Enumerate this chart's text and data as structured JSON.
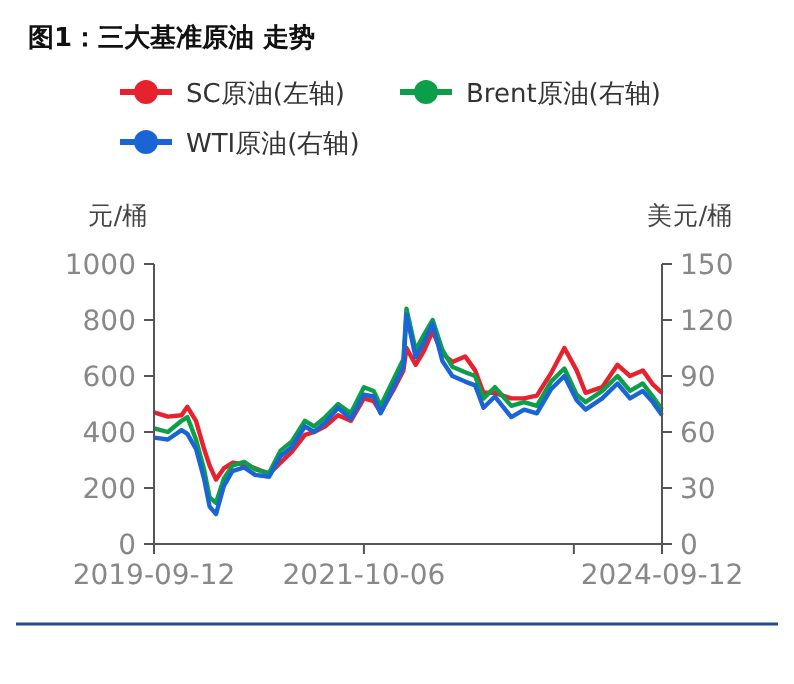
{
  "chart_data": {
    "type": "line",
    "title": "图1：三大基准原油 走势",
    "ylabel": "元/桶",
    "y2label": "美元/桶",
    "legend": "top",
    "grid": false,
    "marker": "none",
    "line_style": "solid",
    "x": [
      "2019-09-12",
      "2019-11-01",
      "2019-12-20",
      "2020-01-10",
      "2020-02-10",
      "2020-03-10",
      "2020-03-30",
      "2020-04-22",
      "2020-05-20",
      "2020-06-20",
      "2020-08-01",
      "2020-09-10",
      "2020-10-30",
      "2020-12-10",
      "2021-01-20",
      "2021-03-08",
      "2021-04-10",
      "2021-05-20",
      "2021-07-05",
      "2021-08-20",
      "2021-10-06",
      "2021-11-10",
      "2021-12-05",
      "2022-01-20",
      "2022-02-25",
      "2022-03-08",
      "2022-04-10",
      "2022-05-10",
      "2022-06-10",
      "2022-07-15",
      "2022-08-20",
      "2022-10-05",
      "2022-11-10",
      "2022-12-10",
      "2023-01-20",
      "2023-03-20",
      "2023-05-05",
      "2023-06-20",
      "2023-08-10",
      "2023-09-27",
      "2023-11-10",
      "2023-12-12",
      "2024-02-10",
      "2024-04-05",
      "2024-05-20",
      "2024-07-05",
      "2024-08-10",
      "2024-09-12"
    ],
    "xlim": [
      "2019-09-12",
      "2024-09-12"
    ],
    "xticks": [
      {
        "value": "2019-09-12",
        "label": "2019-09-12"
      },
      {
        "value": "2021-10-06",
        "label": "2021-10-06"
      },
      {
        "value": "2023-10-31",
        "label": null
      },
      {
        "value": "2024-09-12",
        "label": "2024-09-12"
      }
    ],
    "ylim": [
      0,
      1000
    ],
    "yticks": [
      0,
      200,
      400,
      600,
      800,
      1000
    ],
    "y2lim": [
      0,
      150
    ],
    "y2ticks": [
      0,
      30,
      60,
      90,
      120,
      150
    ],
    "series": [
      {
        "name": "SC原油(左轴)",
        "color": "#e8212e",
        "values": [
          470,
          455,
          460,
          490,
          440,
          340,
          280,
          230,
          270,
          290,
          285,
          270,
          250,
          290,
          330,
          390,
          400,
          420,
          460,
          440,
          520,
          510,
          470,
          550,
          620,
          700,
          640,
          690,
          760,
          680,
          650,
          670,
          620,
          540,
          540,
          520,
          520,
          530,
          610,
          700,
          620,
          540,
          560,
          640,
          600,
          620,
          570,
          540
        ]
      },
      {
        "name": "Brent原油(右轴)",
        "color": "#0c9e49",
        "axis": "y2",
        "values": [
          62,
          60,
          66,
          68,
          56,
          40,
          25,
          22,
          35,
          42,
          44,
          40,
          38,
          50,
          55,
          66,
          63,
          68,
          75,
          70,
          84,
          82,
          74,
          88,
          99,
          126,
          104,
          112,
          120,
          104,
          95,
          92,
          90,
          78,
          84,
          74,
          76,
          74,
          87,
          94,
          80,
          76,
          82,
          90,
          82,
          86,
          79,
          72
        ]
      },
      {
        "name": "WTI原油(右轴)",
        "color": "#1a65d6",
        "axis": "y2",
        "values": [
          57,
          56,
          61,
          59,
          51,
          35,
          20,
          16,
          31,
          39,
          41,
          37,
          36,
          47,
          52,
          63,
          60,
          65,
          73,
          67,
          80,
          79,
          70,
          84,
          95,
          123,
          100,
          108,
          118,
          98,
          90,
          87,
          85,
          73,
          79,
          68,
          72,
          70,
          83,
          90,
          77,
          72,
          78,
          86,
          78,
          82,
          76,
          69
        ]
      }
    ]
  }
}
